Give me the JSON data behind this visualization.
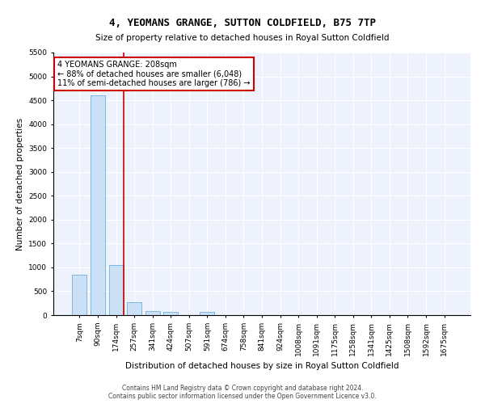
{
  "title": "4, YEOMANS GRANGE, SUTTON COLDFIELD, B75 7TP",
  "subtitle": "Size of property relative to detached houses in Royal Sutton Coldfield",
  "xlabel": "Distribution of detached houses by size in Royal Sutton Coldfield",
  "ylabel": "Number of detached properties",
  "footer_line1": "Contains HM Land Registry data © Crown copyright and database right 2024.",
  "footer_line2": "Contains public sector information licensed under the Open Government Licence v3.0.",
  "annotation_title": "4 YEOMANS GRANGE: 208sqm",
  "annotation_line1": "← 88% of detached houses are smaller (6,048)",
  "annotation_line2": "11% of semi-detached houses are larger (786) →",
  "bar_color": "#cce0f5",
  "bar_edge_color": "#7ab8e0",
  "vline_color": "#cc0000",
  "annotation_box_color": "#cc0000",
  "background_color": "#edf2fc",
  "grid_color": "#ffffff",
  "categories": [
    "7sqm",
    "90sqm",
    "174sqm",
    "257sqm",
    "341sqm",
    "424sqm",
    "507sqm",
    "591sqm",
    "674sqm",
    "758sqm",
    "841sqm",
    "924sqm",
    "1008sqm",
    "1091sqm",
    "1175sqm",
    "1258sqm",
    "1341sqm",
    "1425sqm",
    "1508sqm",
    "1592sqm",
    "1675sqm"
  ],
  "values": [
    850,
    4600,
    1050,
    275,
    90,
    60,
    0,
    60,
    0,
    0,
    0,
    0,
    0,
    0,
    0,
    0,
    0,
    0,
    0,
    0,
    0
  ],
  "ylim": [
    0,
    5500
  ],
  "yticks": [
    0,
    500,
    1000,
    1500,
    2000,
    2500,
    3000,
    3500,
    4000,
    4500,
    5000,
    5500
  ],
  "vline_x": 2.41,
  "title_fontsize": 9,
  "subtitle_fontsize": 7.5,
  "ylabel_fontsize": 7.5,
  "xlabel_fontsize": 7.5,
  "tick_fontsize": 6.5,
  "annotation_fontsize": 7,
  "footer_fontsize": 5.5
}
